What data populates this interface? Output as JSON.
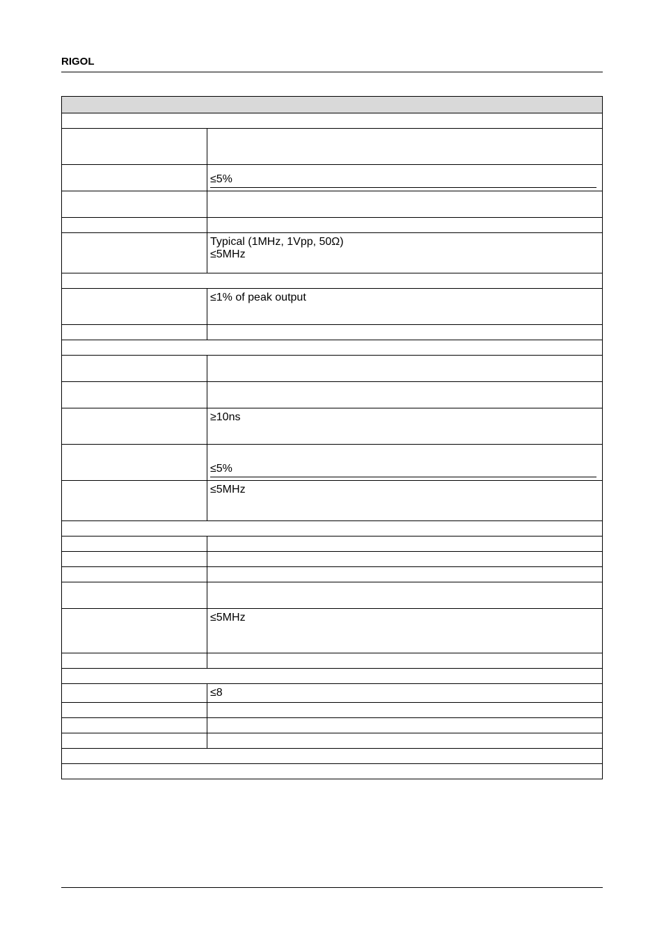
{
  "header": {
    "brand": "RIGOL"
  },
  "table": {
    "rows": [
      {
        "type": "header",
        "colspan": 2
      },
      {
        "type": "full",
        "colspan": 2
      },
      {
        "type": "two",
        "height": "h-tall",
        "left": "",
        "right": ""
      },
      {
        "type": "two-underline",
        "height": "h-med",
        "left": "",
        "right": "≤5%"
      },
      {
        "type": "two",
        "height": "h-med",
        "left": "",
        "right": ""
      },
      {
        "type": "two",
        "height": "h-short",
        "left": "",
        "right": ""
      },
      {
        "type": "two",
        "height": "h-58",
        "left": "",
        "right": "Typical (1MHz, 1Vpp, 50Ω)\n≤5MHz"
      },
      {
        "type": "full",
        "colspan": 2
      },
      {
        "type": "two",
        "height": "h-tall",
        "left": "",
        "right": "≤1% of peak output"
      },
      {
        "type": "two",
        "height": "h-short",
        "left": "",
        "right": ""
      },
      {
        "type": "full",
        "colspan": 2
      },
      {
        "type": "two",
        "height": "h-med",
        "left": "",
        "right": ""
      },
      {
        "type": "two",
        "height": "h-med",
        "left": "",
        "right": ""
      },
      {
        "type": "two",
        "height": "h-tall",
        "left": "",
        "right": "≥10ns"
      },
      {
        "type": "two-underline",
        "height": "h-tall",
        "left": "",
        "right": "≤5%"
      },
      {
        "type": "two",
        "height": "h-58",
        "left": "",
        "right": "≤5MHz"
      },
      {
        "type": "full",
        "colspan": 2
      },
      {
        "type": "two",
        "height": "h-short",
        "left": "",
        "right": ""
      },
      {
        "type": "two",
        "height": "h-short",
        "left": "",
        "right": ""
      },
      {
        "type": "two",
        "height": "h-short",
        "left": "",
        "right": ""
      },
      {
        "type": "two",
        "height": "h-med",
        "left": "",
        "right": ""
      },
      {
        "type": "two",
        "height": "h-64",
        "left": "",
        "right": "≤5MHz"
      },
      {
        "type": "two",
        "height": "h-short",
        "left": "",
        "right": ""
      },
      {
        "type": "full",
        "colspan": 2
      },
      {
        "type": "two",
        "height": "h-short",
        "left": "",
        "right": "≤8"
      },
      {
        "type": "two",
        "height": "h-short",
        "left": "",
        "right": ""
      },
      {
        "type": "two",
        "height": "h-short",
        "left": "",
        "right": ""
      },
      {
        "type": "two",
        "height": "h-short",
        "left": "",
        "right": ""
      },
      {
        "type": "full",
        "colspan": 2
      },
      {
        "type": "full",
        "colspan": 2
      }
    ]
  }
}
